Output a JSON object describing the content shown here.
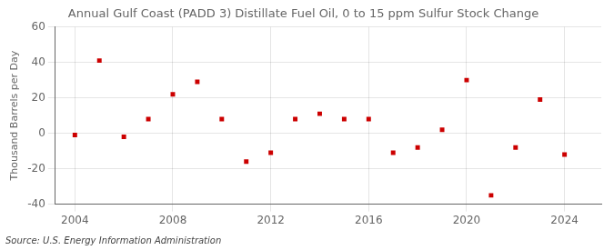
{
  "chart_data": {
    "type": "scatter",
    "title": "Annual Gulf Coast (PADD 3) Distillate Fuel Oil, 0 to 15 ppm Sulfur Stock Change",
    "y_label": "Thousand Barrels per Day",
    "annotations": [
      "Source: U.S. Energy Information Administration"
    ],
    "x": [
      2004,
      2005,
      2006,
      2007,
      2008,
      2009,
      2010,
      2011,
      2012,
      2013,
      2014,
      2015,
      2016,
      2017,
      2018,
      2019,
      2020,
      2021,
      2022,
      2023,
      2024
    ],
    "values": [
      -1,
      41,
      -2,
      8,
      22,
      29,
      8,
      -16,
      -11,
      8,
      11,
      8,
      8,
      -11,
      -8,
      2,
      30,
      -35,
      -8,
      19,
      -12
    ],
    "color": "#cc0000",
    "marker": "square",
    "xlim": [
      2003.2,
      2025.5
    ],
    "xticks": [
      2004,
      2008,
      2012,
      2016,
      2020,
      2024
    ],
    "ylim": [
      -40,
      60
    ],
    "yticks": [
      -40,
      -20,
      0,
      20,
      40,
      60
    ],
    "grid": true
  }
}
